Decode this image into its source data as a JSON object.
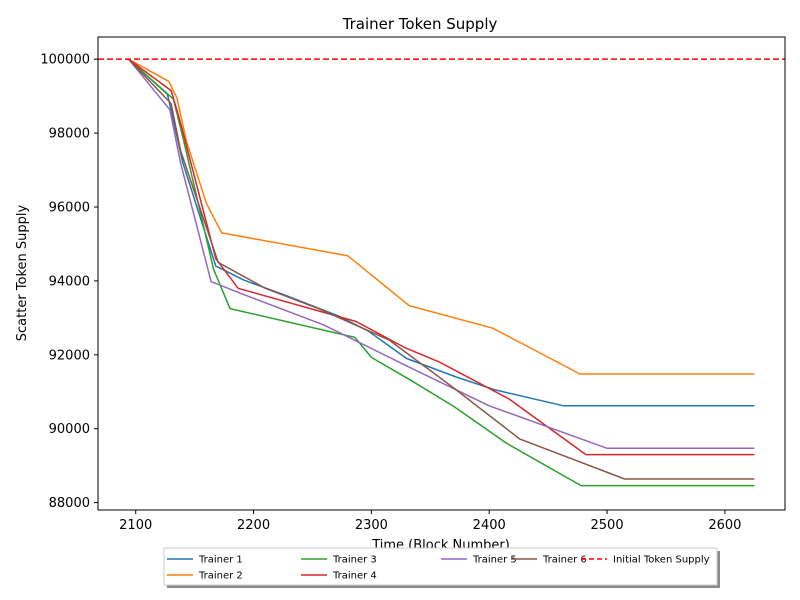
{
  "chart_data": {
    "type": "line",
    "title": "Trainer Token Supply",
    "xlabel": "Time (Block Number)",
    "ylabel": "Scatter Token Supply",
    "xlim": [
      2068,
      2651
    ],
    "ylim": [
      87800,
      100600
    ],
    "xticks": [
      2100,
      2200,
      2300,
      2400,
      2500,
      2600
    ],
    "yticks": [
      88000,
      90000,
      92000,
      94000,
      96000,
      98000,
      100000
    ],
    "grid": false,
    "legend_position": "bottom-center",
    "series": [
      {
        "name": "Trainer 1",
        "color": "#1f77b4",
        "x": [
          2094,
          2127,
          2140,
          2168,
          2192,
          2228,
          2272,
          2297,
          2330,
          2372,
          2405,
          2463,
          2625
        ],
        "y": [
          100000,
          99050,
          97200,
          94400,
          94020,
          93600,
          93050,
          92650,
          91900,
          91400,
          91050,
          90620,
          90620
        ]
      },
      {
        "name": "Trainer 2",
        "color": "#ff7f0e",
        "x": [
          2094,
          2128,
          2135,
          2143,
          2160,
          2173,
          2280,
          2332,
          2403,
          2477,
          2625
        ],
        "y": [
          100000,
          99400,
          98950,
          97780,
          96100,
          95300,
          94680,
          93330,
          92720,
          91480,
          91480
        ]
      },
      {
        "name": "Trainer 3",
        "color": "#2ca02c",
        "x": [
          2094,
          2132,
          2140,
          2166,
          2180,
          2286,
          2300,
          2334,
          2370,
          2415,
          2478,
          2625
        ],
        "y": [
          100000,
          98920,
          97900,
          94320,
          93250,
          92470,
          91930,
          91300,
          90600,
          89600,
          88460,
          88460
        ]
      },
      {
        "name": "Trainer 4",
        "color": "#d62728",
        "x": [
          2094,
          2130,
          2137,
          2168,
          2187,
          2287,
          2328,
          2358,
          2417,
          2482,
          2625
        ],
        "y": [
          100000,
          99150,
          98400,
          94600,
          93800,
          92900,
          92200,
          91800,
          90800,
          89300,
          89300
        ]
      },
      {
        "name": "Trainer 5",
        "color": "#9467bd",
        "x": [
          2094,
          2129,
          2138,
          2164,
          2190,
          2260,
          2330,
          2400,
          2500,
          2625
        ],
        "y": [
          100000,
          98630,
          97200,
          93980,
          93650,
          92800,
          91700,
          90620,
          89470,
          89470
        ]
      },
      {
        "name": "Trainer 6",
        "color": "#8c564b",
        "x": [
          2094,
          2130,
          2138,
          2170,
          2210,
          2255,
          2315,
          2370,
          2426,
          2515,
          2625
        ],
        "y": [
          100000,
          98800,
          97530,
          94500,
          93800,
          93250,
          92400,
          91100,
          89720,
          88640,
          88640
        ]
      }
    ],
    "reference_lines": [
      {
        "name": "Initial Token Supply",
        "y": 100000,
        "color": "#ff0000",
        "style": "dashed"
      }
    ]
  }
}
